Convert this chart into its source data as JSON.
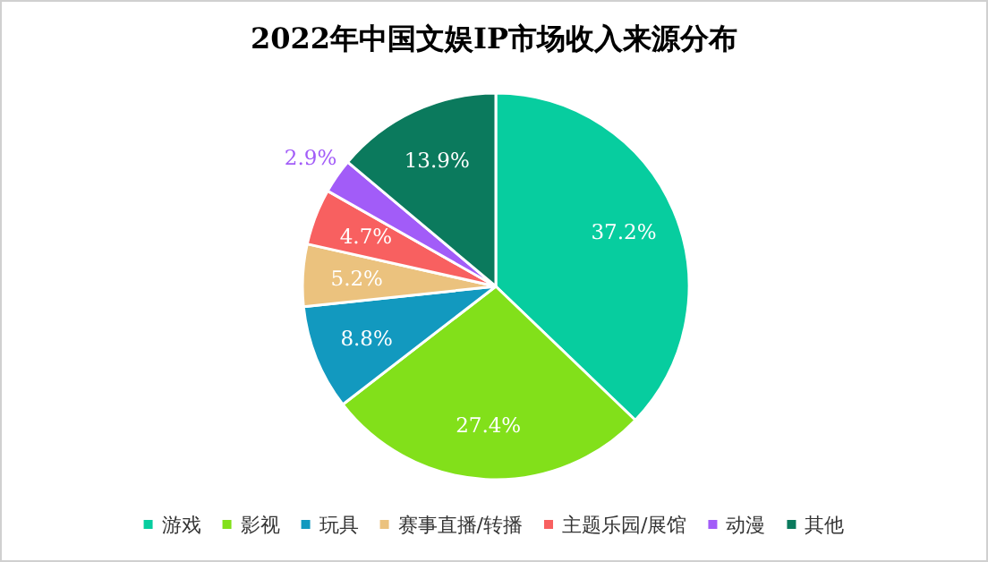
{
  "chart_data": {
    "type": "pie",
    "title": "2022年中国文娱IP市场收入来源分布",
    "categories": [
      "游戏",
      "影视",
      "玩具",
      "赛事直播/转播",
      "主题乐园/展馆",
      "动漫",
      "其他"
    ],
    "values": [
      37.2,
      27.4,
      8.8,
      5.2,
      4.7,
      2.9,
      13.9
    ],
    "colors": [
      "#07cd9f",
      "#82e01a",
      "#1299bf",
      "#ebc27e",
      "#f86060",
      "#a25cf8",
      "#0b7a5d"
    ],
    "value_labels": [
      "37.2%",
      "27.4%",
      "8.8%",
      "5.2%",
      "4.7%",
      "2.9%",
      "13.9%"
    ],
    "legend": "bottom"
  }
}
